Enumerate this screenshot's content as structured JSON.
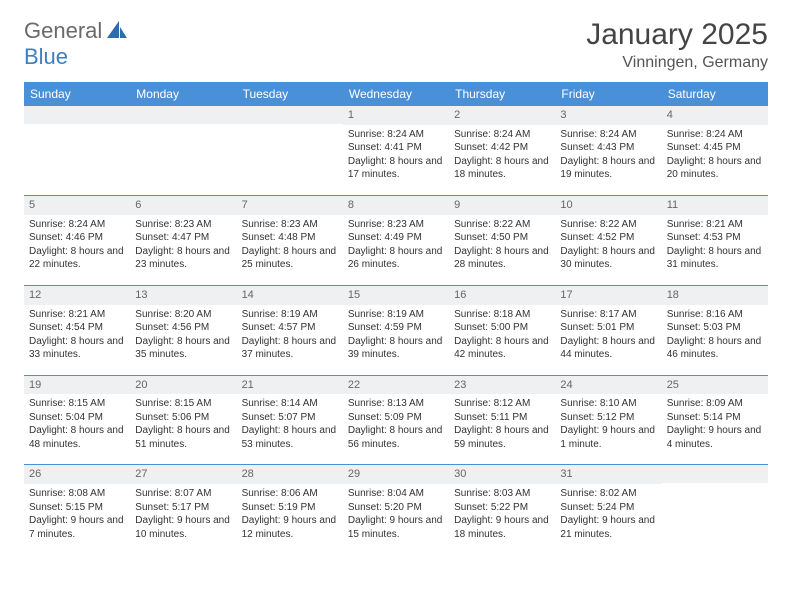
{
  "logo": {
    "text1": "General",
    "text2": "Blue"
  },
  "title": "January 2025",
  "location": "Vinningen, Germany",
  "header_bg": "#4a90d9",
  "header_text_color": "#ffffff",
  "daynum_bg": "#eef0f2",
  "border_color": "#4a90d9",
  "daysOfWeek": [
    "Sunday",
    "Monday",
    "Tuesday",
    "Wednesday",
    "Thursday",
    "Friday",
    "Saturday"
  ],
  "weeks": [
    [
      null,
      null,
      null,
      {
        "n": "1",
        "sr": "8:24 AM",
        "ss": "4:41 PM",
        "dl": "8 hours and 17 minutes."
      },
      {
        "n": "2",
        "sr": "8:24 AM",
        "ss": "4:42 PM",
        "dl": "8 hours and 18 minutes."
      },
      {
        "n": "3",
        "sr": "8:24 AM",
        "ss": "4:43 PM",
        "dl": "8 hours and 19 minutes."
      },
      {
        "n": "4",
        "sr": "8:24 AM",
        "ss": "4:45 PM",
        "dl": "8 hours and 20 minutes."
      }
    ],
    [
      {
        "n": "5",
        "sr": "8:24 AM",
        "ss": "4:46 PM",
        "dl": "8 hours and 22 minutes."
      },
      {
        "n": "6",
        "sr": "8:23 AM",
        "ss": "4:47 PM",
        "dl": "8 hours and 23 minutes."
      },
      {
        "n": "7",
        "sr": "8:23 AM",
        "ss": "4:48 PM",
        "dl": "8 hours and 25 minutes."
      },
      {
        "n": "8",
        "sr": "8:23 AM",
        "ss": "4:49 PM",
        "dl": "8 hours and 26 minutes."
      },
      {
        "n": "9",
        "sr": "8:22 AM",
        "ss": "4:50 PM",
        "dl": "8 hours and 28 minutes."
      },
      {
        "n": "10",
        "sr": "8:22 AM",
        "ss": "4:52 PM",
        "dl": "8 hours and 30 minutes."
      },
      {
        "n": "11",
        "sr": "8:21 AM",
        "ss": "4:53 PM",
        "dl": "8 hours and 31 minutes."
      }
    ],
    [
      {
        "n": "12",
        "sr": "8:21 AM",
        "ss": "4:54 PM",
        "dl": "8 hours and 33 minutes."
      },
      {
        "n": "13",
        "sr": "8:20 AM",
        "ss": "4:56 PM",
        "dl": "8 hours and 35 minutes."
      },
      {
        "n": "14",
        "sr": "8:19 AM",
        "ss": "4:57 PM",
        "dl": "8 hours and 37 minutes."
      },
      {
        "n": "15",
        "sr": "8:19 AM",
        "ss": "4:59 PM",
        "dl": "8 hours and 39 minutes."
      },
      {
        "n": "16",
        "sr": "8:18 AM",
        "ss": "5:00 PM",
        "dl": "8 hours and 42 minutes."
      },
      {
        "n": "17",
        "sr": "8:17 AM",
        "ss": "5:01 PM",
        "dl": "8 hours and 44 minutes."
      },
      {
        "n": "18",
        "sr": "8:16 AM",
        "ss": "5:03 PM",
        "dl": "8 hours and 46 minutes."
      }
    ],
    [
      {
        "n": "19",
        "sr": "8:15 AM",
        "ss": "5:04 PM",
        "dl": "8 hours and 48 minutes."
      },
      {
        "n": "20",
        "sr": "8:15 AM",
        "ss": "5:06 PM",
        "dl": "8 hours and 51 minutes."
      },
      {
        "n": "21",
        "sr": "8:14 AM",
        "ss": "5:07 PM",
        "dl": "8 hours and 53 minutes."
      },
      {
        "n": "22",
        "sr": "8:13 AM",
        "ss": "5:09 PM",
        "dl": "8 hours and 56 minutes."
      },
      {
        "n": "23",
        "sr": "8:12 AM",
        "ss": "5:11 PM",
        "dl": "8 hours and 59 minutes."
      },
      {
        "n": "24",
        "sr": "8:10 AM",
        "ss": "5:12 PM",
        "dl": "9 hours and 1 minute."
      },
      {
        "n": "25",
        "sr": "8:09 AM",
        "ss": "5:14 PM",
        "dl": "9 hours and 4 minutes."
      }
    ],
    [
      {
        "n": "26",
        "sr": "8:08 AM",
        "ss": "5:15 PM",
        "dl": "9 hours and 7 minutes."
      },
      {
        "n": "27",
        "sr": "8:07 AM",
        "ss": "5:17 PM",
        "dl": "9 hours and 10 minutes."
      },
      {
        "n": "28",
        "sr": "8:06 AM",
        "ss": "5:19 PM",
        "dl": "9 hours and 12 minutes."
      },
      {
        "n": "29",
        "sr": "8:04 AM",
        "ss": "5:20 PM",
        "dl": "9 hours and 15 minutes."
      },
      {
        "n": "30",
        "sr": "8:03 AM",
        "ss": "5:22 PM",
        "dl": "9 hours and 18 minutes."
      },
      {
        "n": "31",
        "sr": "8:02 AM",
        "ss": "5:24 PM",
        "dl": "9 hours and 21 minutes."
      },
      null
    ]
  ],
  "labels": {
    "sunrise": "Sunrise:",
    "sunset": "Sunset:",
    "daylight": "Daylight:"
  }
}
